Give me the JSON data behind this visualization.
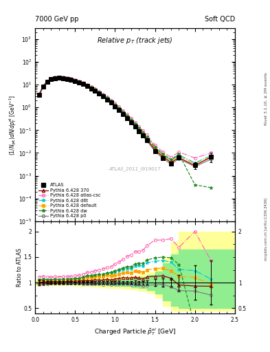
{
  "title_top_left": "7000 GeV pp",
  "title_top_right": "Soft QCD",
  "plot_title": "Relative p_{T} (track jets)",
  "xlabel": "Charged Particle $\\tilde{p}^{el}_{T}$ [GeV]",
  "ylabel_main": "(1/Njet)dN/dp^{el}_{T} [GeV^{-1}]",
  "ylabel_ratio": "Ratio to ATLAS",
  "right_label_top": "Rivet 3.1.10, ≥ 2M events",
  "right_label_bot": "mcplots.cern.ch [arXiv:1306.3436]",
  "watermark": "ATLAS_2011_I919017",
  "xlim": [
    0.0,
    2.5
  ],
  "ylim_main": [
    1e-05,
    3000.0
  ],
  "ylim_ratio": [
    0.4,
    2.2
  ],
  "atlas_x": [
    0.05,
    0.1,
    0.15,
    0.2,
    0.25,
    0.3,
    0.35,
    0.4,
    0.45,
    0.5,
    0.55,
    0.6,
    0.65,
    0.7,
    0.75,
    0.8,
    0.85,
    0.9,
    0.95,
    1.0,
    1.05,
    1.1,
    1.15,
    1.2,
    1.25,
    1.3,
    1.35,
    1.4,
    1.5,
    1.6,
    1.7,
    1.8,
    2.0,
    2.2
  ],
  "atlas_y": [
    3.5,
    8.0,
    13.0,
    17.0,
    19.0,
    19.5,
    19.0,
    18.0,
    16.5,
    14.5,
    12.5,
    10.5,
    8.5,
    6.8,
    5.2,
    4.0,
    3.0,
    2.2,
    1.6,
    1.1,
    0.75,
    0.5,
    0.33,
    0.22,
    0.14,
    0.09,
    0.058,
    0.036,
    0.012,
    0.006,
    0.0035,
    0.0065,
    0.003,
    0.007
  ],
  "atlas_yerr": [
    0.2,
    0.3,
    0.4,
    0.5,
    0.5,
    0.5,
    0.5,
    0.4,
    0.4,
    0.3,
    0.3,
    0.25,
    0.2,
    0.18,
    0.14,
    0.1,
    0.08,
    0.06,
    0.04,
    0.03,
    0.02,
    0.015,
    0.01,
    0.007,
    0.005,
    0.003,
    0.002,
    0.0015,
    0.0008,
    0.0005,
    0.0003,
    0.001,
    0.001,
    0.003
  ],
  "p370_x": [
    0.05,
    0.1,
    0.15,
    0.2,
    0.25,
    0.3,
    0.35,
    0.4,
    0.45,
    0.5,
    0.55,
    0.6,
    0.65,
    0.7,
    0.75,
    0.8,
    0.85,
    0.9,
    0.95,
    1.0,
    1.05,
    1.1,
    1.15,
    1.2,
    1.25,
    1.3,
    1.35,
    1.4,
    1.5,
    1.6,
    1.7,
    1.8,
    2.0,
    2.2
  ],
  "p370_y": [
    3.5,
    8.1,
    13.2,
    17.3,
    19.4,
    19.8,
    19.4,
    18.4,
    16.9,
    14.9,
    12.9,
    10.9,
    8.9,
    7.1,
    5.5,
    4.2,
    3.15,
    2.35,
    1.68,
    1.18,
    0.81,
    0.55,
    0.36,
    0.24,
    0.155,
    0.098,
    0.062,
    0.04,
    0.0135,
    0.0068,
    0.0038,
    0.0062,
    0.0028,
    0.0065
  ],
  "patlas_x": [
    0.05,
    0.1,
    0.15,
    0.2,
    0.25,
    0.3,
    0.35,
    0.4,
    0.45,
    0.5,
    0.55,
    0.6,
    0.65,
    0.7,
    0.75,
    0.8,
    0.85,
    0.9,
    0.95,
    1.0,
    1.05,
    1.1,
    1.15,
    1.2,
    1.25,
    1.3,
    1.35,
    1.4,
    1.5,
    1.6,
    1.7,
    1.8,
    2.0,
    2.2
  ],
  "patlas_y": [
    3.9,
    9.0,
    14.5,
    18.8,
    21.2,
    21.7,
    21.2,
    20.1,
    18.5,
    16.4,
    14.3,
    12.2,
    10.2,
    8.2,
    6.4,
    5.0,
    3.8,
    2.85,
    2.1,
    1.5,
    1.05,
    0.73,
    0.5,
    0.34,
    0.225,
    0.145,
    0.095,
    0.062,
    0.022,
    0.011,
    0.0065,
    0.011,
    0.006,
    0.01
  ],
  "pd6t_x": [
    0.05,
    0.1,
    0.15,
    0.2,
    0.25,
    0.3,
    0.35,
    0.4,
    0.45,
    0.5,
    0.55,
    0.6,
    0.65,
    0.7,
    0.75,
    0.8,
    0.85,
    0.9,
    0.95,
    1.0,
    1.05,
    1.1,
    1.15,
    1.2,
    1.25,
    1.3,
    1.35,
    1.4,
    1.5,
    1.6,
    1.7,
    1.8,
    2.0,
    2.2
  ],
  "pd6t_y": [
    3.7,
    8.5,
    13.8,
    18.0,
    20.2,
    20.7,
    20.2,
    19.2,
    17.7,
    15.6,
    13.6,
    11.6,
    9.6,
    7.7,
    6.0,
    4.65,
    3.5,
    2.6,
    1.9,
    1.33,
    0.92,
    0.63,
    0.42,
    0.28,
    0.185,
    0.12,
    0.077,
    0.05,
    0.017,
    0.0086,
    0.0049,
    0.0082,
    0.0037,
    0.0075
  ],
  "pdef_x": [
    0.05,
    0.1,
    0.15,
    0.2,
    0.25,
    0.3,
    0.35,
    0.4,
    0.45,
    0.5,
    0.55,
    0.6,
    0.65,
    0.7,
    0.75,
    0.8,
    0.85,
    0.9,
    0.95,
    1.0,
    1.05,
    1.1,
    1.15,
    1.2,
    1.25,
    1.3,
    1.35,
    1.4,
    1.5,
    1.6,
    1.7,
    1.8,
    2.0,
    2.2
  ],
  "pdef_y": [
    3.6,
    8.3,
    13.5,
    17.7,
    19.9,
    20.4,
    19.9,
    18.9,
    17.4,
    15.4,
    13.4,
    11.4,
    9.4,
    7.5,
    5.85,
    4.5,
    3.38,
    2.52,
    1.82,
    1.27,
    0.875,
    0.595,
    0.395,
    0.262,
    0.172,
    0.11,
    0.07,
    0.045,
    0.0153,
    0.0077,
    0.0043,
    0.0073,
    0.0033,
    0.0068
  ],
  "pdw_x": [
    0.05,
    0.1,
    0.15,
    0.2,
    0.25,
    0.3,
    0.35,
    0.4,
    0.45,
    0.5,
    0.55,
    0.6,
    0.65,
    0.7,
    0.75,
    0.8,
    0.85,
    0.9,
    0.95,
    1.0,
    1.05,
    1.1,
    1.15,
    1.2,
    1.25,
    1.3,
    1.35,
    1.4,
    1.5,
    1.6,
    1.7,
    1.8,
    2.0,
    2.2
  ],
  "pdw_y": [
    3.7,
    8.5,
    13.8,
    18.0,
    20.2,
    20.7,
    20.2,
    19.2,
    17.7,
    15.6,
    13.6,
    11.6,
    9.6,
    7.7,
    6.0,
    4.65,
    3.5,
    2.62,
    1.92,
    1.35,
    0.94,
    0.645,
    0.432,
    0.289,
    0.191,
    0.124,
    0.08,
    0.052,
    0.0178,
    0.009,
    0.0052,
    0.0088,
    0.0004,
    0.0003
  ],
  "pp0_x": [
    0.05,
    0.1,
    0.15,
    0.2,
    0.25,
    0.3,
    0.35,
    0.4,
    0.45,
    0.5,
    0.55,
    0.6,
    0.65,
    0.7,
    0.75,
    0.8,
    0.85,
    0.9,
    0.95,
    1.0,
    1.05,
    1.1,
    1.15,
    1.2,
    1.25,
    1.3,
    1.35,
    1.4,
    1.5,
    1.6,
    1.7,
    1.8,
    2.0,
    2.2
  ],
  "pp0_y": [
    3.4,
    7.8,
    12.7,
    16.7,
    18.8,
    19.2,
    18.8,
    17.8,
    16.3,
    14.3,
    12.3,
    10.3,
    8.3,
    6.6,
    5.1,
    3.9,
    2.9,
    2.15,
    1.54,
    1.07,
    0.73,
    0.49,
    0.32,
    0.21,
    0.135,
    0.086,
    0.054,
    0.034,
    0.0115,
    0.0058,
    0.0032,
    0.0055,
    0.0025,
    0.0053
  ],
  "color_atlas": "#000000",
  "color_370": "#8B0000",
  "color_atlas_csc": "#FF69B4",
  "color_d6t": "#00CED1",
  "color_default": "#FFA500",
  "color_dw": "#228B22",
  "color_p0": "#808080",
  "ratio_band_inner_color": "#90EE90",
  "ratio_band_outer_color": "#FFFF99",
  "band_steps_x": [
    0.0,
    0.1,
    0.2,
    0.3,
    0.4,
    0.5,
    0.6,
    0.7,
    0.8,
    0.9,
    1.0,
    1.1,
    1.2,
    1.3,
    1.4,
    1.5,
    1.6,
    1.7,
    1.8,
    2.0,
    2.5
  ],
  "band_outer_hi": [
    1.05,
    1.05,
    1.05,
    1.05,
    1.05,
    1.06,
    1.07,
    1.08,
    1.09,
    1.1,
    1.11,
    1.12,
    1.14,
    1.16,
    1.2,
    1.3,
    1.5,
    1.8,
    2.0,
    2.0,
    2.0
  ],
  "band_outer_lo": [
    0.95,
    0.95,
    0.95,
    0.95,
    0.95,
    0.94,
    0.93,
    0.92,
    0.91,
    0.9,
    0.89,
    0.88,
    0.86,
    0.84,
    0.8,
    0.7,
    0.55,
    0.45,
    0.45,
    0.45,
    0.45
  ],
  "band_inner_hi": [
    1.02,
    1.02,
    1.02,
    1.02,
    1.02,
    1.03,
    1.035,
    1.04,
    1.045,
    1.05,
    1.06,
    1.07,
    1.09,
    1.11,
    1.15,
    1.22,
    1.38,
    1.55,
    1.65,
    1.65,
    1.65
  ],
  "band_inner_lo": [
    0.98,
    0.98,
    0.98,
    0.98,
    0.98,
    0.97,
    0.965,
    0.96,
    0.955,
    0.95,
    0.94,
    0.93,
    0.91,
    0.89,
    0.85,
    0.78,
    0.65,
    0.55,
    0.5,
    0.5,
    0.5
  ]
}
